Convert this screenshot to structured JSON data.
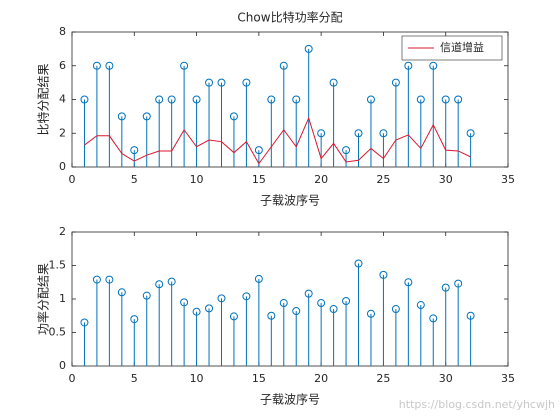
{
  "chart_data": [
    {
      "type": "stem",
      "title": "Chow比特功率分配",
      "xlabel": "子载波序号",
      "ylabel": "比特分配结果",
      "x": [
        1,
        2,
        3,
        4,
        5,
        6,
        7,
        8,
        9,
        10,
        11,
        12,
        13,
        14,
        15,
        16,
        17,
        18,
        19,
        20,
        21,
        22,
        23,
        24,
        25,
        26,
        27,
        28,
        29,
        30,
        31,
        32
      ],
      "xlim": [
        0,
        35
      ],
      "xticks": [
        0,
        5,
        10,
        15,
        20,
        25,
        30,
        35
      ],
      "ylim": [
        0,
        8
      ],
      "yticks": [
        0,
        2,
        4,
        6,
        8
      ],
      "legend": "northeast",
      "series": [
        {
          "color": "#0072bd",
          "values": [
            4,
            6,
            6,
            3,
            1,
            3,
            4,
            4,
            6,
            4,
            5,
            5,
            3,
            5,
            1,
            4,
            6,
            4,
            7,
            2,
            5,
            1,
            2,
            4,
            2,
            5,
            6,
            4,
            6,
            4,
            4,
            2
          ]
        },
        {
          "name": "信道增益",
          "type": "line",
          "color": "#d9182b",
          "values": [
            1.3,
            1.85,
            1.85,
            0.8,
            0.35,
            0.7,
            0.95,
            0.95,
            2.2,
            1.2,
            1.6,
            1.5,
            0.85,
            1.5,
            0.2,
            1.2,
            2.2,
            1.2,
            2.9,
            0.5,
            1.4,
            0.3,
            0.4,
            1.1,
            0.5,
            1.6,
            1.9,
            1.1,
            2.5,
            1.0,
            0.95,
            0.6
          ]
        }
      ]
    },
    {
      "type": "stem",
      "xlabel": "子载波序号",
      "ylabel": "功率分配结果",
      "x": [
        1,
        2,
        3,
        4,
        5,
        6,
        7,
        8,
        9,
        10,
        11,
        12,
        13,
        14,
        15,
        16,
        17,
        18,
        19,
        20,
        21,
        22,
        23,
        24,
        25,
        26,
        27,
        28,
        29,
        30,
        31,
        32
      ],
      "xlim": [
        0,
        35
      ],
      "xticks": [
        0,
        5,
        10,
        15,
        20,
        25,
        30,
        35
      ],
      "ylim": [
        0,
        2
      ],
      "yticks": [
        0,
        0.5,
        1,
        1.5,
        2
      ],
      "series": [
        {
          "color": "#0072bd",
          "values": [
            0.65,
            1.29,
            1.29,
            1.1,
            0.7,
            1.05,
            1.22,
            1.26,
            0.95,
            0.81,
            0.86,
            1.01,
            0.74,
            1.04,
            1.3,
            0.75,
            0.94,
            0.82,
            1.08,
            0.94,
            0.85,
            0.97,
            1.53,
            0.78,
            1.36,
            0.85,
            1.25,
            0.91,
            0.71,
            1.17,
            1.23,
            0.75
          ]
        }
      ]
    }
  ],
  "watermark": "https://blog.csdn.net/yhcwjh"
}
